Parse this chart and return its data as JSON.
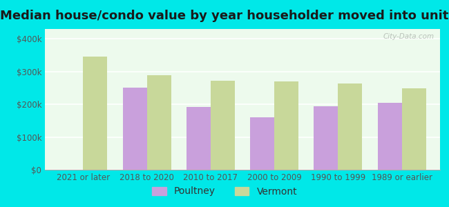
{
  "title": "Median house/condo value by year householder moved into unit",
  "categories": [
    "2021 or later",
    "2018 to 2020",
    "2010 to 2017",
    "2000 to 2009",
    "1990 to 1999",
    "1989 or earlier"
  ],
  "poultney": [
    null,
    250000,
    192000,
    160000,
    193000,
    205000
  ],
  "vermont": [
    345000,
    288000,
    272000,
    270000,
    263000,
    248000
  ],
  "poultney_color": "#c9a0dc",
  "vermont_color": "#c8d89a",
  "plot_bg_color": "#edfaed",
  "outer_background": "#00e8e8",
  "ylim": [
    0,
    430000
  ],
  "yticks": [
    0,
    100000,
    200000,
    300000,
    400000
  ],
  "ytick_labels": [
    "$0",
    "$100k",
    "$200k",
    "$300k",
    "$400k"
  ],
  "legend_poultney": "Poultney",
  "legend_vermont": "Vermont",
  "bar_width": 0.38,
  "title_fontsize": 13,
  "tick_fontsize": 8.5,
  "legend_fontsize": 10,
  "watermark": "City-Data.com"
}
